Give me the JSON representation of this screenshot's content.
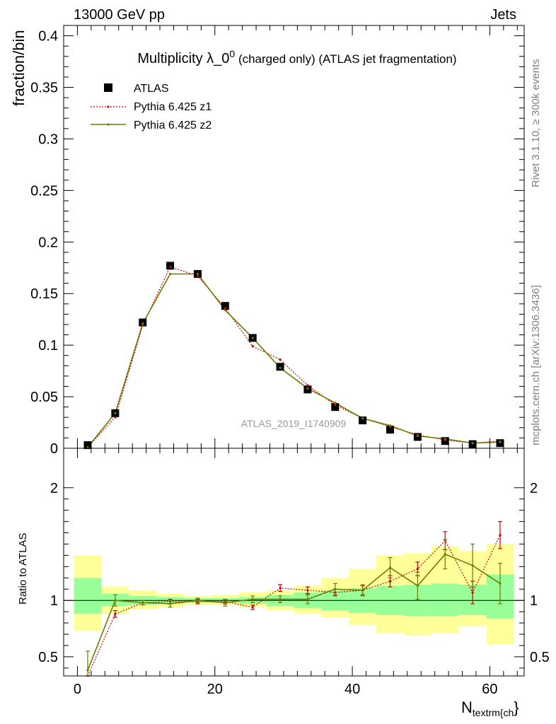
{
  "header": {
    "energy_label": "13000 GeV pp",
    "process_label": "Jets"
  },
  "side_labels": {
    "rivet": "Rivet 3.1.10, ≥ 300k events",
    "source": "mcplots.cern.ch [arXiv:1306.3436]"
  },
  "watermark": "ATLAS_2019_I1740909",
  "colors": {
    "atlas": "#000000",
    "z1": "#cc0000",
    "z2": "#6b7a00",
    "band_outer": "#ffff99",
    "band_inner": "#99ff99"
  },
  "chart_data": [
    {
      "type": "line",
      "panel": "main",
      "title_main": "Multiplicity λ_0",
      "title_sup": "0",
      "title_suffix": " (charged only) (ATLAS jet fragmentation)",
      "ylabel": "fraction/bin",
      "xlim": [
        -2,
        65
      ],
      "ylim": [
        0,
        0.41
      ],
      "yticks": [
        0,
        0.05,
        0.1,
        0.15,
        0.2,
        0.25,
        0.3,
        0.35,
        0.4
      ],
      "ytick_labels": [
        "0",
        "0.05",
        "0.1",
        "0.15",
        "0.2",
        "0.25",
        "0.3",
        "0.35",
        "0.4"
      ],
      "legend": {
        "position": "top-left",
        "entries": [
          "ATLAS",
          "Pythia 6.425 z1",
          "Pythia 6.425 z2"
        ]
      },
      "x": [
        1.5,
        5.5,
        9.5,
        13.5,
        17.5,
        21.5,
        25.5,
        29.5,
        33.5,
        37.5,
        41.5,
        45.5,
        49.5,
        53.5,
        57.5,
        61.5
      ],
      "series": [
        {
          "name": "ATLAS",
          "style": "markers",
          "values": [
            0.003,
            0.034,
            0.122,
            0.177,
            0.169,
            0.138,
            0.107,
            0.079,
            0.057,
            0.04,
            0.027,
            0.018,
            0.011,
            0.007,
            0.004,
            0.005
          ]
        },
        {
          "name": "Pythia 6.425 z1",
          "style": "dotted",
          "values": [
            0.001,
            0.03,
            0.119,
            0.176,
            0.167,
            0.136,
            0.099,
            0.086,
            0.061,
            0.042,
            0.029,
            0.021,
            0.013,
            0.008,
            0.005,
            0.007
          ]
        },
        {
          "name": "Pythia 6.425 z2",
          "style": "solid",
          "values": [
            0.001,
            0.034,
            0.121,
            0.169,
            0.169,
            0.134,
            0.107,
            0.078,
            0.058,
            0.044,
            0.029,
            0.022,
            0.012,
            0.009,
            0.005,
            0.006
          ]
        }
      ]
    },
    {
      "type": "line",
      "panel": "ratio",
      "ylabel": "Ratio to ATLAS",
      "xlabel_main": "N",
      "xlabel_sub": "textrm{ch",
      "xlabel_close": "}",
      "xlim": [
        -2,
        65
      ],
      "ylim": [
        0.33,
        2.35
      ],
      "yticks": [
        0.5,
        1,
        2
      ],
      "ytick_labels": [
        "0.5",
        "1",
        "2"
      ],
      "xticks": [
        0,
        20,
        40,
        60
      ],
      "xtick_labels": [
        "0",
        "20",
        "40",
        "60"
      ],
      "bins": [
        [
          -0.5,
          3.5
        ],
        [
          3.5,
          7.5
        ],
        [
          7.5,
          11.5
        ],
        [
          11.5,
          15.5
        ],
        [
          15.5,
          19.5
        ],
        [
          19.5,
          23.5
        ],
        [
          23.5,
          27.5
        ],
        [
          27.5,
          31.5
        ],
        [
          31.5,
          35.5
        ],
        [
          35.5,
          39.5
        ],
        [
          39.5,
          43.5
        ],
        [
          43.5,
          47.5
        ],
        [
          47.5,
          51.5
        ],
        [
          51.5,
          55.5
        ],
        [
          55.5,
          59.5
        ],
        [
          59.5,
          63.5
        ]
      ],
      "band_inner": [
        [
          0.88,
          1.2
        ],
        [
          0.95,
          1.06
        ],
        [
          0.96,
          1.04
        ],
        [
          0.97,
          1.03
        ],
        [
          0.98,
          1.02
        ],
        [
          0.98,
          1.02
        ],
        [
          0.97,
          1.03
        ],
        [
          0.95,
          1.05
        ],
        [
          0.93,
          1.07
        ],
        [
          0.91,
          1.09
        ],
        [
          0.89,
          1.11
        ],
        [
          0.87,
          1.13
        ],
        [
          0.86,
          1.14
        ],
        [
          0.86,
          1.15
        ],
        [
          0.87,
          1.14
        ],
        [
          0.84,
          1.23
        ]
      ],
      "band_outer": [
        [
          0.73,
          1.4
        ],
        [
          0.88,
          1.12
        ],
        [
          0.92,
          1.09
        ],
        [
          0.94,
          1.06
        ],
        [
          0.96,
          1.04
        ],
        [
          0.96,
          1.05
        ],
        [
          0.94,
          1.07
        ],
        [
          0.91,
          1.09
        ],
        [
          0.88,
          1.13
        ],
        [
          0.85,
          1.2
        ],
        [
          0.78,
          1.28
        ],
        [
          0.71,
          1.4
        ],
        [
          0.69,
          1.42
        ],
        [
          0.71,
          1.48
        ],
        [
          0.77,
          1.44
        ],
        [
          0.61,
          1.5
        ]
      ],
      "series": [
        {
          "name": "Pythia 6.425 z1",
          "style": "dotted",
          "values": [
            0.28,
            0.88,
            0.98,
            0.99,
            0.99,
            0.99,
            0.94,
            1.11,
            1.09,
            1.07,
            1.09,
            1.17,
            1.28,
            1.53,
            1.07,
            1.58
          ],
          "errors": [
            0.03,
            0.03,
            0.02,
            0.02,
            0.02,
            0.02,
            0.02,
            0.03,
            0.03,
            0.03,
            0.04,
            0.05,
            0.06,
            0.08,
            0.1,
            0.12
          ]
        },
        {
          "name": "Pythia 6.425 z2",
          "style": "solid",
          "values": [
            0.38,
            1.0,
            0.98,
            0.97,
            1.0,
            0.98,
            1.01,
            1.01,
            1.01,
            1.1,
            1.09,
            1.29,
            1.13,
            1.41,
            1.31,
            1.15
          ],
          "errors": [
            0.17,
            0.05,
            0.02,
            0.03,
            0.02,
            0.03,
            0.03,
            0.03,
            0.04,
            0.05,
            0.05,
            0.09,
            0.12,
            0.13,
            0.19,
            0.18
          ]
        }
      ]
    }
  ]
}
